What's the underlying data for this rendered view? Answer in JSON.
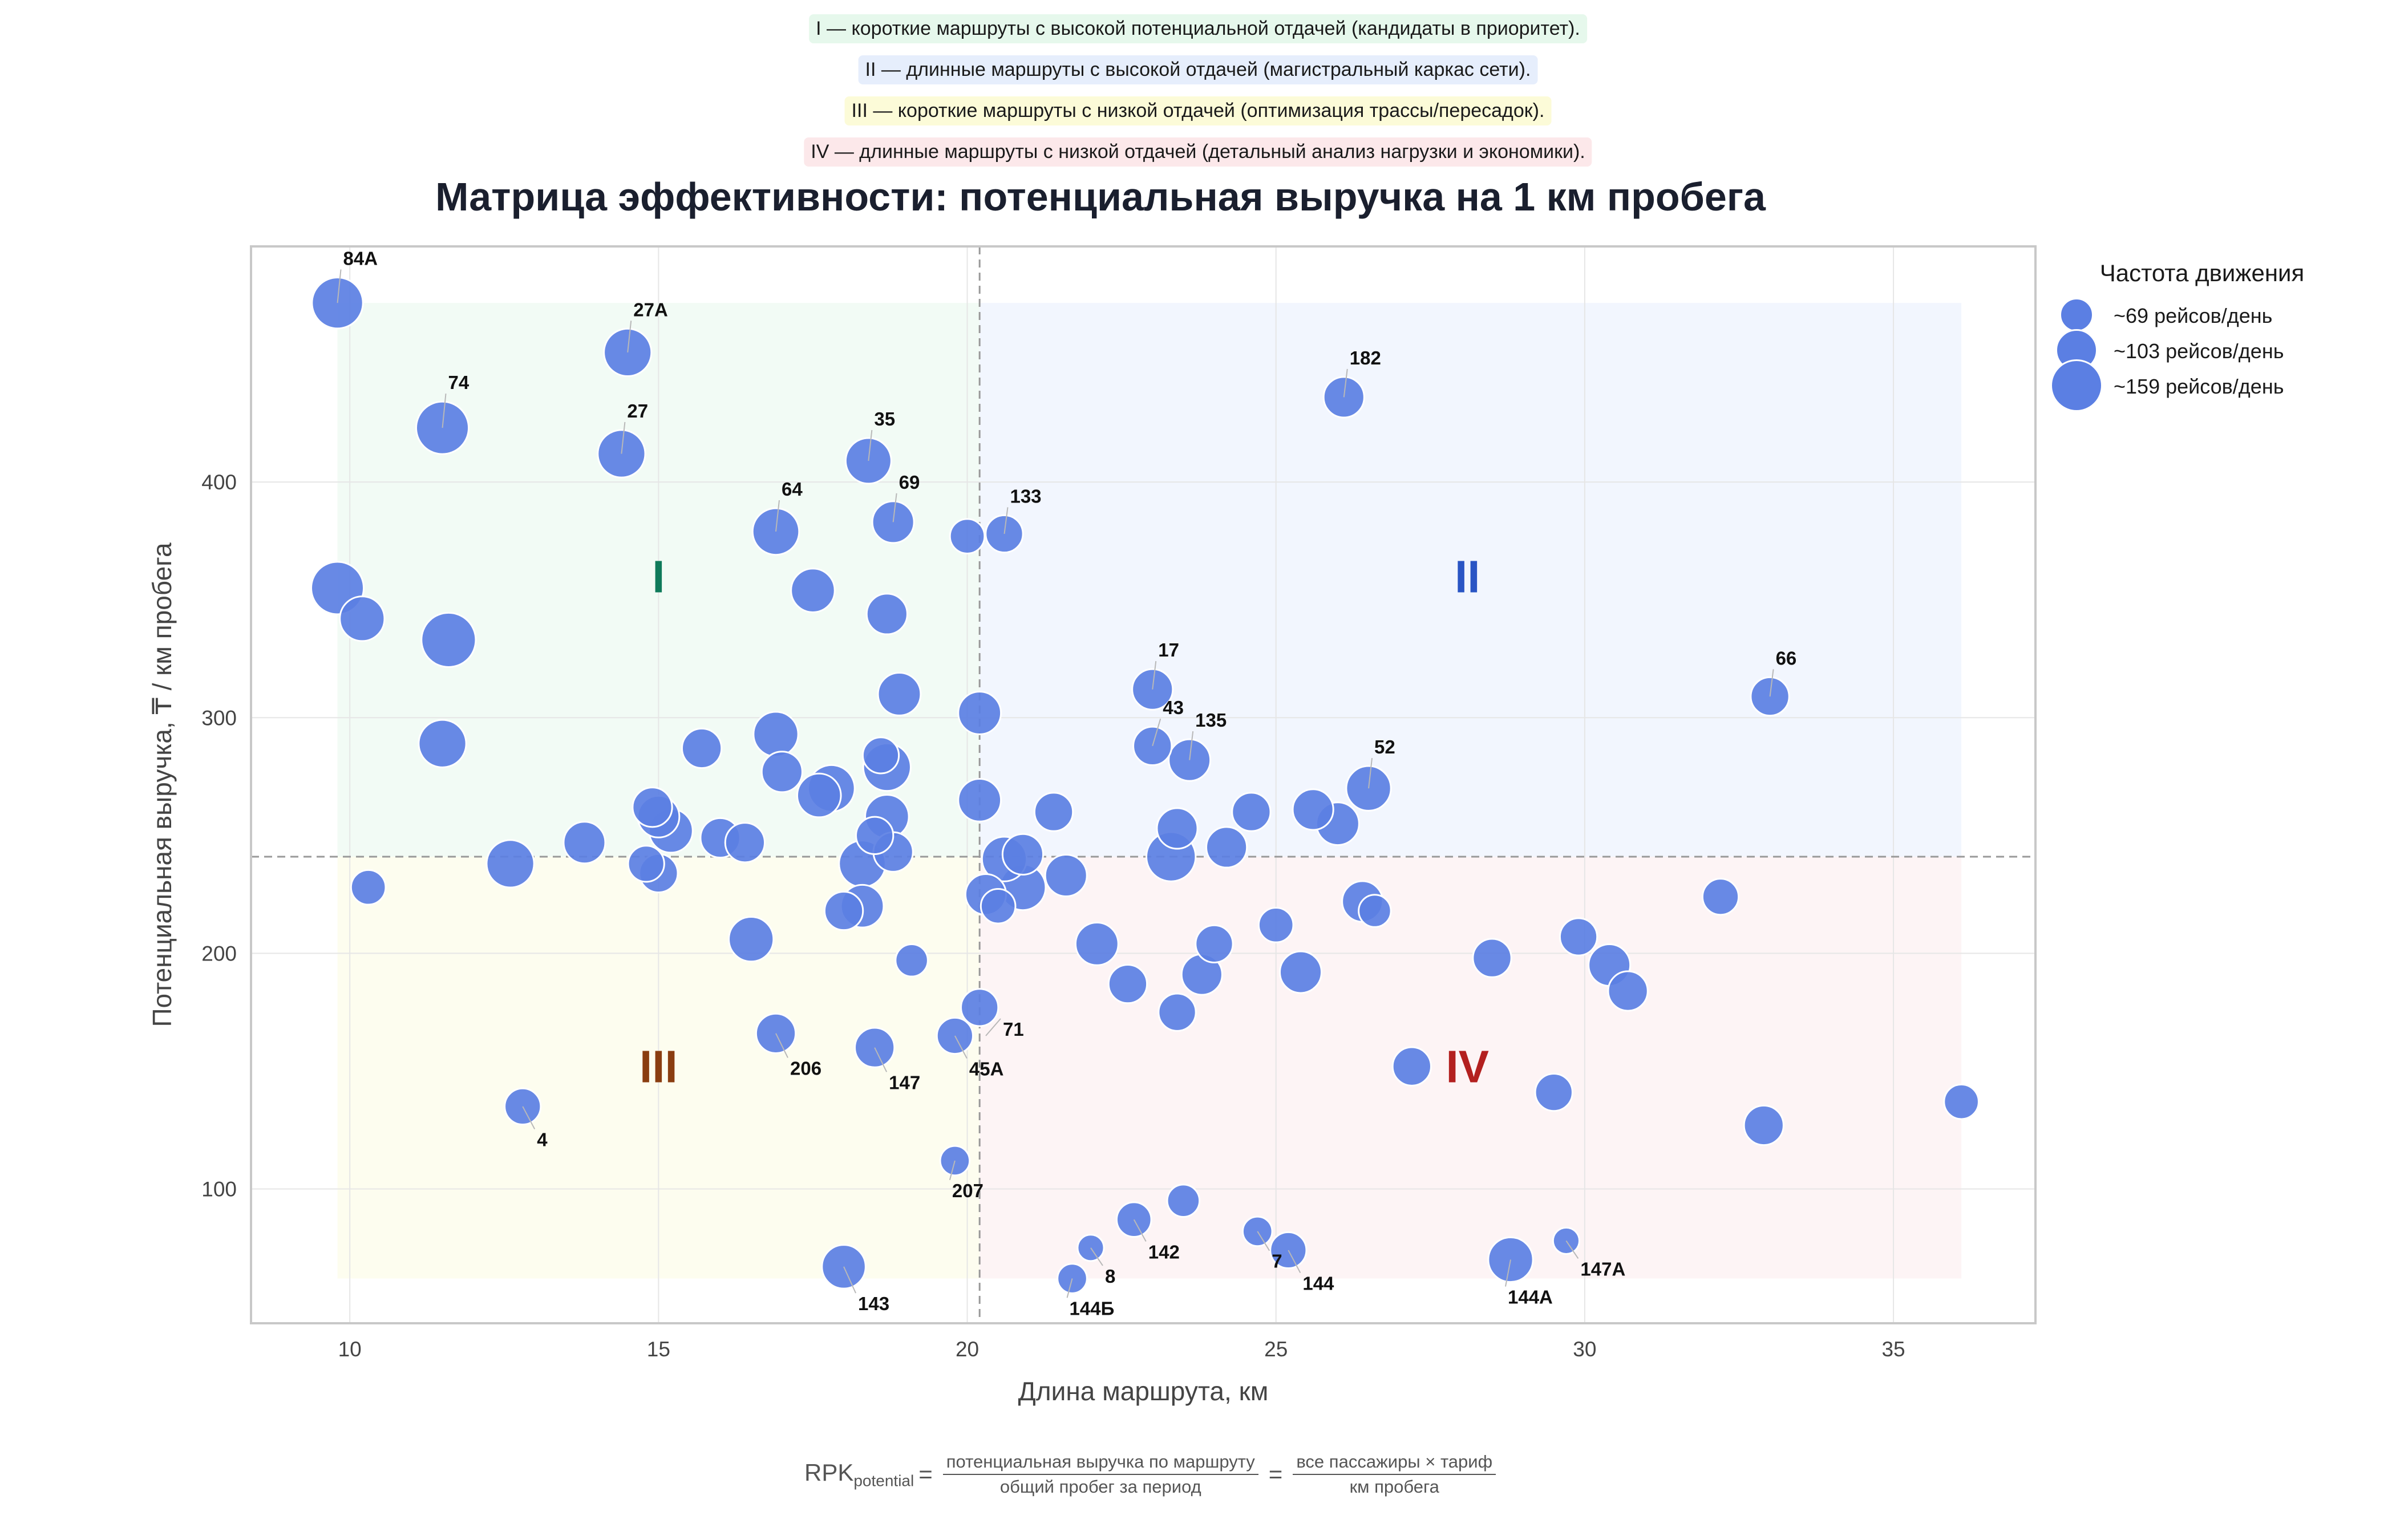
{
  "notes": [
    {
      "text": "I — короткие маршруты с высокой потенциальной отдачей (кандидаты в приоритет).",
      "bg": "#e6f8ec"
    },
    {
      "text": "II — длинные маршруты с высокой отдачей (магистральный каркас сети).",
      "bg": "#e6eefc"
    },
    {
      "text": "III — короткие маршруты с низкой отдачей (оптимизация трассы/пересадок).",
      "bg": "#fcfbd8"
    },
    {
      "text": "IV — длинные маршруты с низкой отдачей (детальный анализ нагрузки и экономики).",
      "bg": "#fce8ea"
    }
  ],
  "legend": {
    "title": "Частота движения",
    "items": [
      {
        "label": "~69 рейсов/день",
        "freq": 69
      },
      {
        "label": "~103 рейсов/день",
        "freq": 103
      },
      {
        "label": "~159 рейсов/день",
        "freq": 159
      }
    ]
  },
  "formula": {
    "lhs": "RPK",
    "lhs_sub": "potential",
    "frac1_num": "потенциальная выручка по маршруту",
    "frac1_den": "общий пробег за период",
    "frac2_num": "все пассажиры × тариф",
    "frac2_den": "км пробега"
  },
  "colors": {
    "bubble": "#5b7fe3",
    "q1": "#0f7a5a",
    "q2": "#2a55c4",
    "q3": "#8a3d10",
    "q4": "#b3201f"
  },
  "chart_data": {
    "type": "scatter",
    "title": "Матрица эффективности: потенциальная выручка на 1 км пробега",
    "xlabel": "Длина маршрута, км",
    "ylabel": "Потенциальная выручка, ₸ / км пробега",
    "xlim": [
      8.4,
      37.3
    ],
    "ylim": [
      43,
      500
    ],
    "xticks": [
      10,
      15,
      20,
      25,
      30,
      35
    ],
    "yticks": [
      100,
      200,
      300,
      400
    ],
    "grid": true,
    "legend_position": "outside-right-top",
    "median_x": 20.2,
    "median_y": 241,
    "quadrant_labels": [
      {
        "label": "I",
        "x": 15.0,
        "y": 360
      },
      {
        "label": "II",
        "x": 28.1,
        "y": 360
      },
      {
        "label": "III",
        "x": 15.0,
        "y": 152
      },
      {
        "label": "IV",
        "x": 28.1,
        "y": 152
      }
    ],
    "points": [
      {
        "x": 9.8,
        "y": 476,
        "freq": 150,
        "label": "84А",
        "pos": "up"
      },
      {
        "x": 14.5,
        "y": 455,
        "freq": 130,
        "label": "27А",
        "pos": "up"
      },
      {
        "x": 26.1,
        "y": 436,
        "freq": 95,
        "label": "182",
        "pos": "up"
      },
      {
        "x": 11.5,
        "y": 423,
        "freq": 159,
        "label": "74",
        "pos": "up"
      },
      {
        "x": 14.4,
        "y": 412,
        "freq": 130,
        "label": "27",
        "pos": "up"
      },
      {
        "x": 18.4,
        "y": 409,
        "freq": 120,
        "label": "35",
        "pos": "up"
      },
      {
        "x": 18.8,
        "y": 383,
        "freq": 100,
        "label": "69",
        "pos": "up"
      },
      {
        "x": 16.9,
        "y": 379,
        "freq": 125,
        "label": "64",
        "pos": "up"
      },
      {
        "x": 20.6,
        "y": 378,
        "freq": 80,
        "label": "133",
        "pos": "up"
      },
      {
        "x": 20.0,
        "y": 377,
        "freq": 69
      },
      {
        "x": 9.8,
        "y": 355,
        "freq": 159
      },
      {
        "x": 17.5,
        "y": 354,
        "freq": 110
      },
      {
        "x": 18.7,
        "y": 344,
        "freq": 95
      },
      {
        "x": 10.2,
        "y": 342,
        "freq": 115
      },
      {
        "x": 11.6,
        "y": 333,
        "freq": 170
      },
      {
        "x": 23.0,
        "y": 312,
        "freq": 95,
        "label": "17",
        "pos": "up"
      },
      {
        "x": 18.9,
        "y": 310,
        "freq": 105
      },
      {
        "x": 33.0,
        "y": 309,
        "freq": 85,
        "label": "66",
        "pos": "up"
      },
      {
        "x": 20.2,
        "y": 302,
        "freq": 105
      },
      {
        "x": 16.9,
        "y": 293,
        "freq": 115
      },
      {
        "x": 11.5,
        "y": 289,
        "freq": 130
      },
      {
        "x": 23.0,
        "y": 288,
        "freq": 85,
        "label": "43",
        "pos": "upright"
      },
      {
        "x": 15.7,
        "y": 287,
        "freq": 90
      },
      {
        "x": 18.6,
        "y": 284,
        "freq": 75
      },
      {
        "x": 23.6,
        "y": 282,
        "freq": 100,
        "label": "135",
        "pos": "up"
      },
      {
        "x": 18.7,
        "y": 279,
        "freq": 130
      },
      {
        "x": 17.0,
        "y": 277,
        "freq": 95
      },
      {
        "x": 26.5,
        "y": 270,
        "freq": 115,
        "label": "52",
        "pos": "up"
      },
      {
        "x": 17.8,
        "y": 270,
        "freq": 125
      },
      {
        "x": 17.6,
        "y": 267,
        "freq": 110
      },
      {
        "x": 20.2,
        "y": 265,
        "freq": 105
      },
      {
        "x": 14.9,
        "y": 262,
        "freq": 90
      },
      {
        "x": 25.6,
        "y": 261,
        "freq": 95
      },
      {
        "x": 21.4,
        "y": 260,
        "freq": 85
      },
      {
        "x": 24.6,
        "y": 260,
        "freq": 85
      },
      {
        "x": 15.0,
        "y": 258,
        "freq": 100
      },
      {
        "x": 18.7,
        "y": 258,
        "freq": 110
      },
      {
        "x": 26.0,
        "y": 255,
        "freq": 105
      },
      {
        "x": 23.4,
        "y": 253,
        "freq": 95
      },
      {
        "x": 15.2,
        "y": 252,
        "freq": 110
      },
      {
        "x": 18.5,
        "y": 250,
        "freq": 80
      },
      {
        "x": 16.0,
        "y": 249,
        "freq": 90
      },
      {
        "x": 13.8,
        "y": 247,
        "freq": 100
      },
      {
        "x": 16.4,
        "y": 247,
        "freq": 90
      },
      {
        "x": 24.2,
        "y": 245,
        "freq": 95
      },
      {
        "x": 18.8,
        "y": 243,
        "freq": 90
      },
      {
        "x": 20.9,
        "y": 242,
        "freq": 95
      },
      {
        "x": 23.3,
        "y": 241,
        "freq": 140
      },
      {
        "x": 20.6,
        "y": 240,
        "freq": 115
      },
      {
        "x": 12.6,
        "y": 238,
        "freq": 130
      },
      {
        "x": 14.8,
        "y": 238,
        "freq": 75
      },
      {
        "x": 18.3,
        "y": 238,
        "freq": 125
      },
      {
        "x": 15.0,
        "y": 234,
        "freq": 85
      },
      {
        "x": 21.6,
        "y": 233,
        "freq": 100
      },
      {
        "x": 10.3,
        "y": 228,
        "freq": 69
      },
      {
        "x": 20.9,
        "y": 228,
        "freq": 120
      },
      {
        "x": 20.3,
        "y": 225,
        "freq": 95
      },
      {
        "x": 32.2,
        "y": 224,
        "freq": 75
      },
      {
        "x": 26.4,
        "y": 222,
        "freq": 95
      },
      {
        "x": 20.5,
        "y": 220,
        "freq": 69
      },
      {
        "x": 18.3,
        "y": 220,
        "freq": 105
      },
      {
        "x": 18.0,
        "y": 218,
        "freq": 85
      },
      {
        "x": 26.6,
        "y": 218,
        "freq": 60
      },
      {
        "x": 25.0,
        "y": 212,
        "freq": 69
      },
      {
        "x": 29.9,
        "y": 207,
        "freq": 80
      },
      {
        "x": 16.5,
        "y": 206,
        "freq": 115
      },
      {
        "x": 22.1,
        "y": 204,
        "freq": 105
      },
      {
        "x": 24.0,
        "y": 204,
        "freq": 80
      },
      {
        "x": 28.5,
        "y": 198,
        "freq": 85
      },
      {
        "x": 19.1,
        "y": 197,
        "freq": 60
      },
      {
        "x": 30.4,
        "y": 195,
        "freq": 100
      },
      {
        "x": 25.4,
        "y": 192,
        "freq": 100
      },
      {
        "x": 23.8,
        "y": 191,
        "freq": 95
      },
      {
        "x": 22.6,
        "y": 187,
        "freq": 85
      },
      {
        "x": 30.7,
        "y": 184,
        "freq": 90
      },
      {
        "x": 20.2,
        "y": 177,
        "freq": 80
      },
      {
        "x": 23.4,
        "y": 175,
        "freq": 80
      },
      {
        "x": 16.9,
        "y": 166,
        "freq": 90,
        "label": "206",
        "pos": "downright"
      },
      {
        "x": 19.8,
        "y": 165,
        "freq": 75,
        "label": "45А",
        "pos": "downright"
      },
      {
        "x": 20.3,
        "y": 165,
        "freq": 1,
        "label": "71",
        "pos": "right"
      },
      {
        "x": 18.5,
        "y": 160,
        "freq": 90,
        "label": "147",
        "pos": "downright"
      },
      {
        "x": 27.2,
        "y": 152,
        "freq": 85
      },
      {
        "x": 29.5,
        "y": 141,
        "freq": 80
      },
      {
        "x": 36.1,
        "y": 137,
        "freq": 69
      },
      {
        "x": 12.8,
        "y": 135,
        "freq": 75,
        "label": "4",
        "pos": "downright"
      },
      {
        "x": 32.9,
        "y": 127,
        "freq": 90
      },
      {
        "x": 19.8,
        "y": 112,
        "freq": 50,
        "label": "207",
        "pos": "down"
      },
      {
        "x": 23.5,
        "y": 95,
        "freq": 60
      },
      {
        "x": 22.7,
        "y": 87,
        "freq": 69,
        "label": "142",
        "pos": "downright"
      },
      {
        "x": 24.7,
        "y": 82,
        "freq": 50,
        "label": "7",
        "pos": "downright"
      },
      {
        "x": 29.7,
        "y": 78,
        "freq": 40,
        "label": "147А",
        "pos": "downright"
      },
      {
        "x": 22.0,
        "y": 75,
        "freq": 40,
        "label": "8",
        "pos": "downright"
      },
      {
        "x": 25.2,
        "y": 74,
        "freq": 75,
        "label": "144",
        "pos": "downright"
      },
      {
        "x": 28.8,
        "y": 70,
        "freq": 115,
        "label": "144А",
        "pos": "down"
      },
      {
        "x": 18.0,
        "y": 67,
        "freq": 110,
        "label": "143",
        "pos": "downright"
      },
      {
        "x": 21.7,
        "y": 62,
        "freq": 50,
        "label": "144Б",
        "pos": "down"
      }
    ]
  }
}
